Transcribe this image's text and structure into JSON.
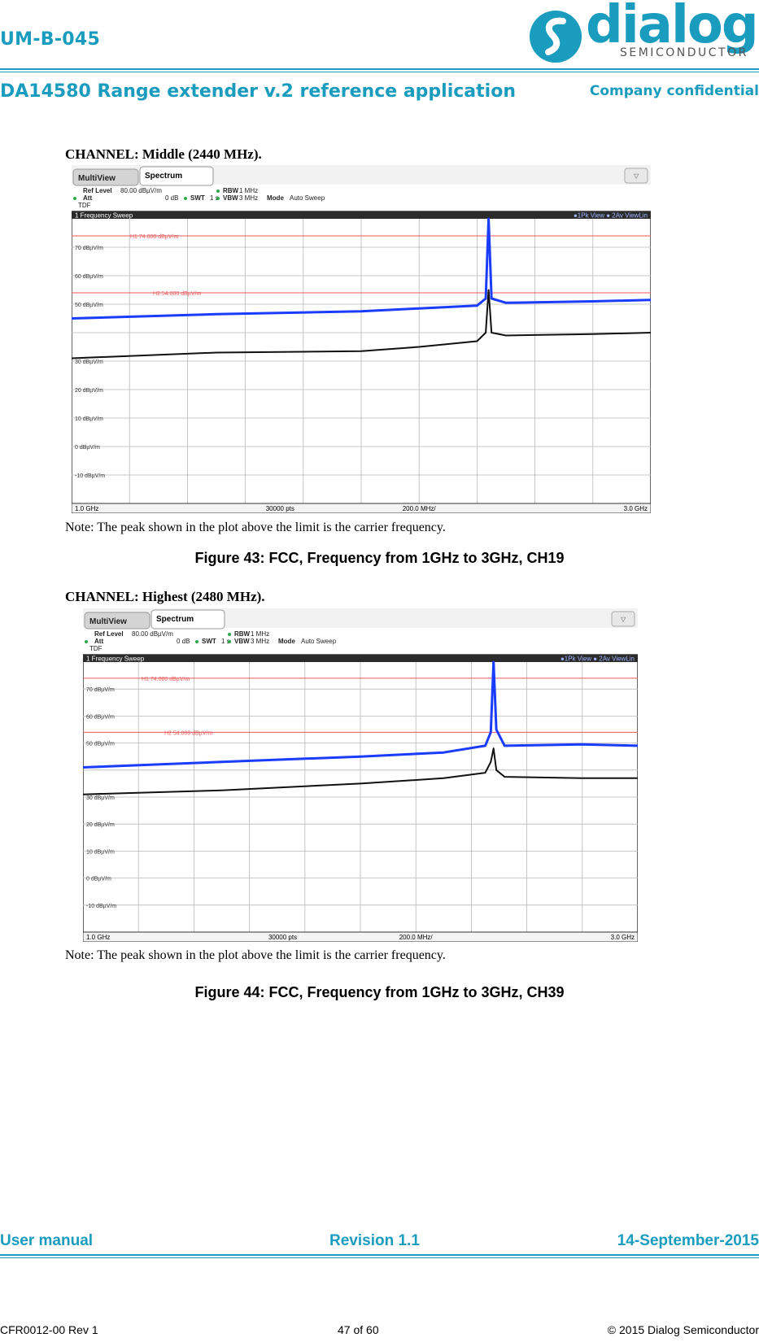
{
  "header": {
    "doc_code": "UM-B-045",
    "doc_title": "DA14580 Range extender v.2 reference application",
    "confidential": "Company confidential",
    "logo_word": "dialog",
    "logo_sub": "SEMICONDUCTOR"
  },
  "figures": [
    {
      "channel": "CHANNEL: Middle (2440 MHz).",
      "tab_multiview": "MultiView",
      "tab_spectrum": "Spectrum",
      "ref_level_label": "Ref Level",
      "ref_level_value": "80.00 dBµV/m",
      "att_label": "Att",
      "att_value": "0 dB",
      "swt_label": "SWT",
      "swt_value": "1 s",
      "rbw_label": "RBW",
      "rbw_value": "1 MHz",
      "vbw_label": "VBW",
      "vbw_value": "3 MHz",
      "mode_label": "Mode",
      "mode_value": "Auto Sweep",
      "tdf": "TDF",
      "sweep_title": "1 Frequency Sweep",
      "trace_legend": "●1Pk View  ● 2Av ViewLin",
      "limit_h1": "H1  74.000 dBµV/m",
      "limit_h2": "H2  54.000 dBµV/m",
      "y_ticks": [
        "70 dBµV/m",
        "60 dBµV/m",
        "50 dBµV/m",
        "30 dBµV/m",
        "20 dBµV/m",
        "10 dBµV/m",
        "0 dBµV/m",
        "-10 dBµV/m"
      ],
      "footer_start": "1.0 GHz",
      "footer_pts": "30000 pts",
      "footer_div": "200.0 MHz/",
      "footer_stop": "3.0 GHz",
      "note": "Note: The peak shown in the plot above the limit is the carrier frequency.",
      "caption": "Figure 43: FCC, Frequency from 1GHz to 3GHz, CH19",
      "chart_data": {
        "type": "line",
        "title": "1 Frequency Sweep",
        "xlim": [
          1.0,
          3.0
        ],
        "ylim": [
          -20,
          80
        ],
        "x_unit": "GHz",
        "y_unit": "dBµV/m",
        "limits": [
          {
            "name": "H1",
            "value": 74
          },
          {
            "name": "H2",
            "value": 54
          }
        ],
        "series": [
          {
            "name": "1Pk View",
            "color": "#1a3cff",
            "x": [
              1.0,
              1.5,
              2.0,
              2.2,
              2.4,
              2.43,
              2.44,
              2.45,
              2.5,
              2.8,
              3.0
            ],
            "y": [
              45.0,
              46.5,
              47.5,
              48.5,
              49.5,
              52.0,
              80.0,
              52.0,
              50.5,
              51.0,
              51.5
            ]
          },
          {
            "name": "2Av ViewLin",
            "color": "#111111",
            "x": [
              1.0,
              1.5,
              2.0,
              2.2,
              2.4,
              2.43,
              2.44,
              2.45,
              2.5,
              2.8,
              3.0
            ],
            "y": [
              31.0,
              33.0,
              33.5,
              35.0,
              37.0,
              40.0,
              55.0,
              40.0,
              39.0,
              39.5,
              40.0
            ]
          }
        ]
      }
    },
    {
      "channel": "CHANNEL: Highest (2480 MHz).",
      "tab_multiview": "MultiView",
      "tab_spectrum": "Spectrum",
      "ref_level_label": "Ref Level",
      "ref_level_value": "80.00 dBµV/m",
      "att_label": "Att",
      "att_value": "0 dB",
      "swt_label": "SWT",
      "swt_value": "1 s",
      "rbw_label": "RBW",
      "rbw_value": "1 MHz",
      "vbw_label": "VBW",
      "vbw_value": "3 MHz",
      "mode_label": "Mode",
      "mode_value": "Auto Sweep",
      "tdf": "TDF",
      "sweep_title": "1 Frequency Sweep",
      "trace_legend": "●1Pk View  ● 2Av ViewLin",
      "limit_h1": "H1  74.000 dBµV/m",
      "limit_h2": "H2  54.000 dBµV/m",
      "y_ticks": [
        "70 dBµV/m",
        "60 dBµV/m",
        "50 dBµV/m",
        "30 dBµV/m",
        "20 dBµV/m",
        "10 dBµV/m",
        "0 dBµV/m",
        "-10 dBµV/m"
      ],
      "footer_start": "1.0 GHz",
      "footer_pts": "30000 pts",
      "footer_div": "200.0 MHz/",
      "footer_stop": "3.0 GHz",
      "note": "Note: The peak shown in the plot above the limit is the carrier frequency.",
      "caption": "Figure 44: FCC, Frequency from 1GHz to 3GHz, CH39",
      "chart_data": {
        "type": "line",
        "title": "1 Frequency Sweep",
        "xlim": [
          1.0,
          3.0
        ],
        "ylim": [
          -20,
          80
        ],
        "x_unit": "GHz",
        "y_unit": "dBµV/m",
        "limits": [
          {
            "name": "H1",
            "value": 74
          },
          {
            "name": "H2",
            "value": 54
          }
        ],
        "series": [
          {
            "name": "1Pk View",
            "color": "#1a3cff",
            "x": [
              1.0,
              1.5,
              2.0,
              2.3,
              2.45,
              2.47,
              2.48,
              2.49,
              2.52,
              2.8,
              3.0
            ],
            "y": [
              41.0,
              43.0,
              45.0,
              46.5,
              49.0,
              54.0,
              80.0,
              55.0,
              49.0,
              49.5,
              49.0
            ]
          },
          {
            "name": "2Av ViewLin",
            "color": "#111111",
            "x": [
              1.0,
              1.5,
              2.0,
              2.3,
              2.45,
              2.47,
              2.48,
              2.49,
              2.52,
              2.8,
              3.0
            ],
            "y": [
              31.0,
              32.5,
              35.0,
              37.0,
              39.0,
              43.0,
              48.0,
              40.0,
              37.5,
              37.0,
              37.0
            ]
          }
        ]
      }
    }
  ],
  "footer": {
    "left": "User manual",
    "mid": "Revision 1.1",
    "right": "14-September-2015",
    "small_left": "CFR0012-00 Rev 1",
    "small_mid": "47 of 60",
    "small_right": "© 2015 Dialog Semiconductor"
  }
}
